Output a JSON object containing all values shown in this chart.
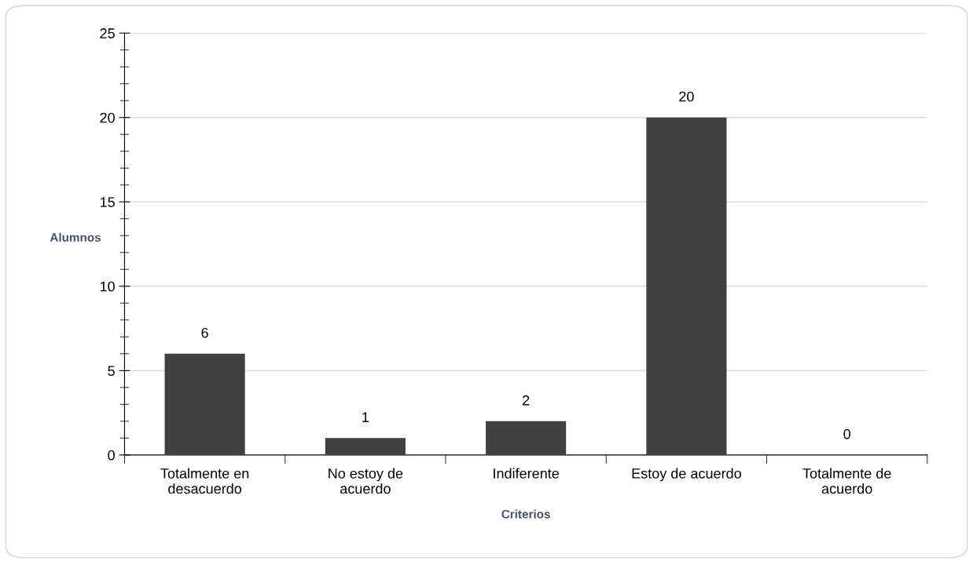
{
  "chart_data": {
    "type": "bar",
    "categories": [
      "Totalmente en\ndesacuerdo",
      "No estoy de\nacuerdo",
      "Indiferente",
      "Estoy de acuerdo",
      "Totalmente de\nacuerdo"
    ],
    "values": [
      6,
      1,
      2,
      20,
      0
    ],
    "color": "#404040",
    "xlabel": "Criterios",
    "ylabel": "Alumnos",
    "ylim": [
      0,
      25
    ],
    "yticks": [
      0,
      {
        "value": 1,
        "label": null
      },
      {
        "value": 2,
        "label": null
      },
      {
        "value": 3,
        "label": null
      },
      {
        "value": 4,
        "label": null
      },
      5,
      {
        "value": 6,
        "label": null
      },
      {
        "value": 7,
        "label": null
      },
      {
        "value": 8,
        "label": null
      },
      {
        "value": 9,
        "label": null
      },
      10,
      {
        "value": 11,
        "label": null
      },
      {
        "value": 12,
        "label": null
      },
      {
        "value": 13,
        "label": null
      },
      {
        "value": 14,
        "label": null
      },
      15,
      {
        "value": 16,
        "label": null
      },
      {
        "value": 17,
        "label": null
      },
      {
        "value": 18,
        "label": null
      },
      {
        "value": 19,
        "label": null
      },
      20,
      {
        "value": 21,
        "label": null
      },
      {
        "value": 22,
        "label": null
      },
      {
        "value": 23,
        "label": null
      },
      {
        "value": 24,
        "label": null
      },
      25
    ],
    "grid": "y",
    "data_labels": true
  }
}
